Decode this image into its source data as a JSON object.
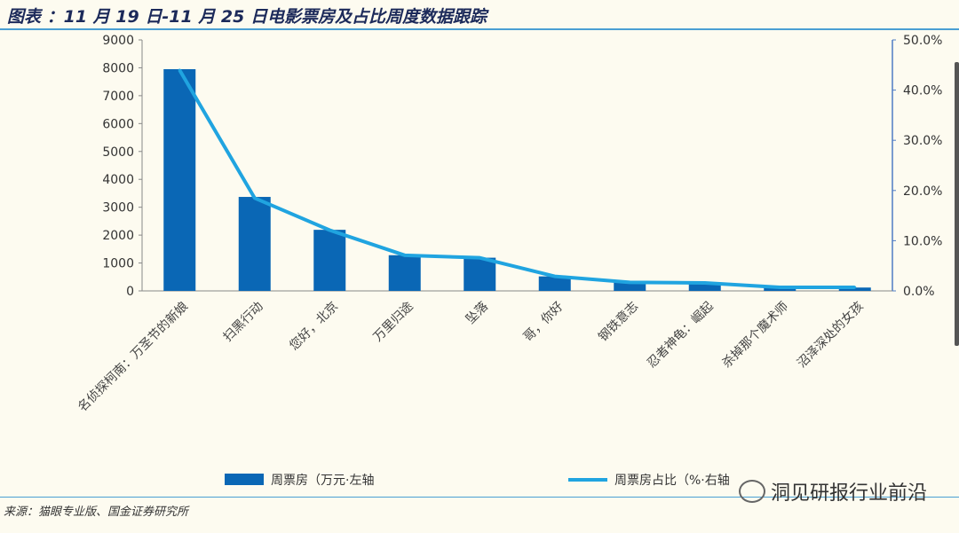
{
  "header": {
    "title": "图表 ：11 月 19 日-11 月 25 日电影票房及占比周度数据跟踪"
  },
  "footer": {
    "source": "来源：猫眼专业版、国金证券研究所",
    "watermark": "洞见研报行业前沿"
  },
  "chart_data": {
    "type": "bar",
    "categories": [
      "名侦探柯南：万圣节的新娘",
      "扫黑行动",
      "您好，北京",
      "万里归途",
      "坠落",
      "哥，你好",
      "钢铁意志",
      "忍者神龟：崛起",
      "杀掉那个魔术师",
      "沼泽深处的女孩"
    ],
    "series": [
      {
        "name": "周票房（万元·左轴",
        "axis": "left",
        "type": "bar",
        "color": "#0a67b5",
        "values": [
          7950,
          3370,
          2190,
          1280,
          1190,
          520,
          310,
          280,
          110,
          120
        ]
      },
      {
        "name": "周票房占比（%·右轴",
        "axis": "right",
        "type": "line",
        "color": "#20a4e0",
        "values": [
          44.0,
          18.5,
          12.1,
          7.1,
          6.6,
          2.9,
          1.7,
          1.6,
          0.7,
          0.7
        ]
      }
    ],
    "left_axis": {
      "ylim": [
        0,
        9000
      ],
      "ticks": [
        "0",
        "1000",
        "2000",
        "3000",
        "4000",
        "5000",
        "6000",
        "7000",
        "8000",
        "9000"
      ]
    },
    "right_axis": {
      "ylim": [
        0,
        50
      ],
      "ticks": [
        "0.0%",
        "10.0%",
        "20.0%",
        "30.0%",
        "40.0%",
        "50.0%"
      ]
    },
    "legend_position": "bottom"
  }
}
